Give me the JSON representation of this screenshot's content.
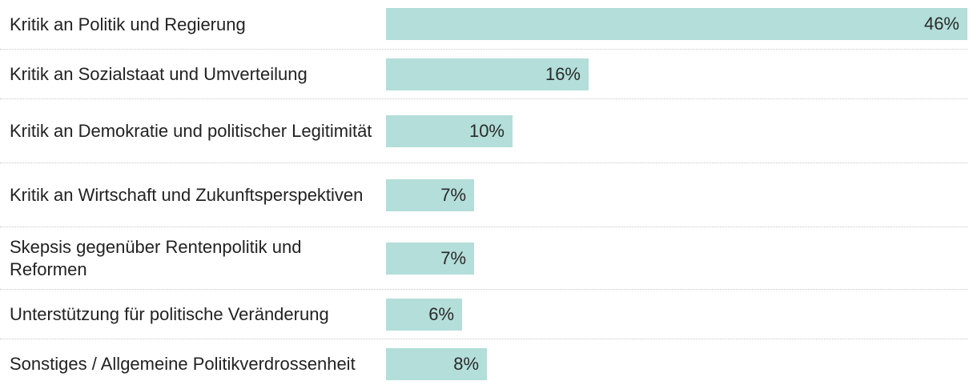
{
  "chart_data": {
    "type": "bar",
    "orientation": "horizontal",
    "categories": [
      "Kritik an Politik und Regierung",
      "Kritik an Sozialstaat und Umverteilung",
      "Kritik an Demokratie und politischer Legitimität",
      "Kritik an Wirtschaft und Zukunftsperspektiven",
      "Skepsis gegenüber Rentenpolitik und Reformen",
      "Unterstützung für politische Veränderung",
      "Sonstiges / Allgemeine Politikverdrossenheit"
    ],
    "values": [
      46,
      16,
      10,
      7,
      7,
      6,
      8
    ],
    "value_labels": [
      "46%",
      "16%",
      "10%",
      "7%",
      "7%",
      "6%",
      "8%"
    ],
    "unit": "%",
    "xlim": [
      0,
      46
    ],
    "bar_color": "#b3ded9",
    "grid": false
  }
}
